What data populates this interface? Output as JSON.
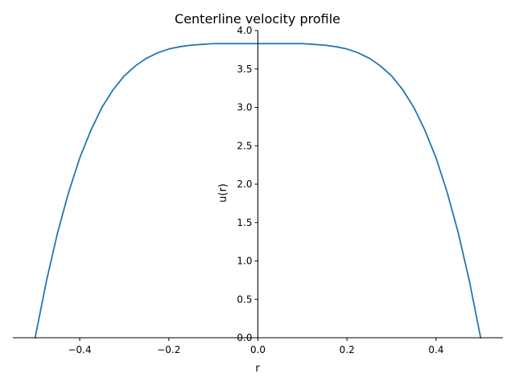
{
  "chart_data": {
    "type": "line",
    "title": "Centerline velocity profile",
    "xlabel": "r",
    "ylabel": "u(r)",
    "xlim": [
      -0.55,
      0.55
    ],
    "ylim": [
      0.0,
      4.0
    ],
    "xticks": [
      -0.4,
      -0.2,
      0.0,
      0.2,
      0.4
    ],
    "xtick_labels": [
      "−0.4",
      "−0.2",
      "0.0",
      "0.2",
      "0.4"
    ],
    "yticks": [
      0.0,
      0.5,
      1.0,
      1.5,
      2.0,
      2.5,
      3.0,
      3.5,
      4.0
    ],
    "ytick_labels": [
      "0.0",
      "0.5",
      "1.0",
      "1.5",
      "2.0",
      "2.5",
      "3.0",
      "3.5",
      "4.0"
    ],
    "grid": false,
    "legend": "none",
    "series": [
      {
        "color": "#1f77b4",
        "x": [
          -0.5,
          -0.475,
          -0.45,
          -0.425,
          -0.4,
          -0.375,
          -0.35,
          -0.325,
          -0.3,
          -0.275,
          -0.25,
          -0.225,
          -0.2,
          -0.175,
          -0.15,
          -0.125,
          -0.1,
          -0.075,
          -0.05,
          -0.025,
          0.0,
          0.025,
          0.05,
          0.075,
          0.1,
          0.125,
          0.15,
          0.175,
          0.2,
          0.225,
          0.25,
          0.275,
          0.3,
          0.325,
          0.35,
          0.375,
          0.4,
          0.425,
          0.45,
          0.475,
          0.5
        ],
        "y": [
          0.0,
          0.73,
          1.36,
          1.89,
          2.34,
          2.7,
          3.0,
          3.23,
          3.41,
          3.54,
          3.64,
          3.71,
          3.76,
          3.79,
          3.81,
          3.82,
          3.83,
          3.83,
          3.83,
          3.83,
          3.83,
          3.83,
          3.83,
          3.83,
          3.83,
          3.82,
          3.81,
          3.79,
          3.76,
          3.71,
          3.64,
          3.54,
          3.41,
          3.23,
          3.0,
          2.7,
          2.34,
          1.89,
          1.36,
          0.73,
          0.0
        ]
      }
    ]
  }
}
